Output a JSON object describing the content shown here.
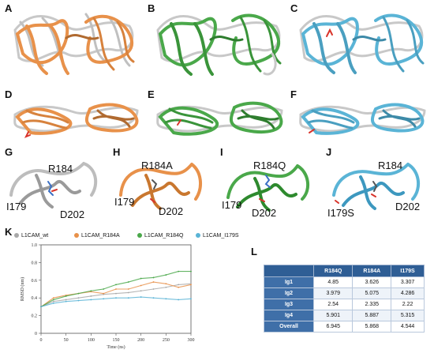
{
  "panels": {
    "A": "A",
    "B": "B",
    "C": "C",
    "D": "D",
    "E": "E",
    "F": "F",
    "G": "G",
    "H": "H",
    "I": "I",
    "J": "J",
    "K": "K",
    "L": "L"
  },
  "colors": {
    "wt": "#a8a8a8",
    "R184A": "#e8914a",
    "R184Q": "#4aa84a",
    "I179S": "#5ab4d6",
    "table_header": "#2f5e95",
    "table_rowhead": "#3f6fa8"
  },
  "residues": {
    "G": {
      "top": "R184",
      "left": "I179",
      "right": "D202"
    },
    "H": {
      "top": "R184A",
      "left": "I179",
      "right": "D202"
    },
    "I": {
      "top": "R184Q",
      "left": "I179",
      "right": "D202"
    },
    "J": {
      "top": "R184",
      "left": "I179S",
      "right": "D202"
    }
  },
  "chart_data": {
    "type": "line",
    "xlabel": "Time (ns)",
    "ylabel": "RMSD (nm)",
    "x": [
      0,
      25,
      50,
      75,
      100,
      125,
      150,
      175,
      200,
      225,
      250,
      275,
      300
    ],
    "xlim": [
      0,
      300
    ],
    "ylim": [
      0,
      1.0
    ],
    "xticks": [
      "0",
      "50",
      "100",
      "150",
      "200",
      "250",
      "300"
    ],
    "yticks": [
      "0",
      "0.2",
      "0.4",
      "0.6",
      "0.8",
      "1.0"
    ],
    "series": [
      {
        "name": "L1CAM_wt",
        "color": "#a8a8a8",
        "values": [
          0.3,
          0.36,
          0.38,
          0.4,
          0.42,
          0.44,
          0.45,
          0.46,
          0.48,
          0.5,
          0.52,
          0.55,
          0.56
        ]
      },
      {
        "name": "L1CAM_R184A",
        "color": "#e8914a",
        "values": [
          0.3,
          0.4,
          0.43,
          0.45,
          0.47,
          0.45,
          0.5,
          0.5,
          0.54,
          0.58,
          0.56,
          0.52,
          0.55
        ]
      },
      {
        "name": "L1CAM_R184Q",
        "color": "#4aa84a",
        "values": [
          0.3,
          0.38,
          0.42,
          0.45,
          0.48,
          0.5,
          0.55,
          0.58,
          0.62,
          0.63,
          0.66,
          0.7,
          0.7
        ]
      },
      {
        "name": "L1CAM_I179S",
        "color": "#5ab4d6",
        "values": [
          0.3,
          0.34,
          0.36,
          0.37,
          0.38,
          0.39,
          0.4,
          0.4,
          0.41,
          0.4,
          0.39,
          0.38,
          0.39
        ]
      }
    ]
  },
  "table": {
    "headers": [
      "",
      "R184Q",
      "R184A",
      "I179S"
    ],
    "rows": [
      [
        "Ig1",
        "4.85",
        "3.626",
        "3.307"
      ],
      [
        "Ig2",
        "3.979",
        "5.075",
        "4.286"
      ],
      [
        "Ig3",
        "2.54",
        "2.335",
        "2.22"
      ],
      [
        "Ig4",
        "5.901",
        "5.887",
        "5.315"
      ],
      [
        "Overall",
        "6.945",
        "5.868",
        "4.544"
      ]
    ]
  }
}
